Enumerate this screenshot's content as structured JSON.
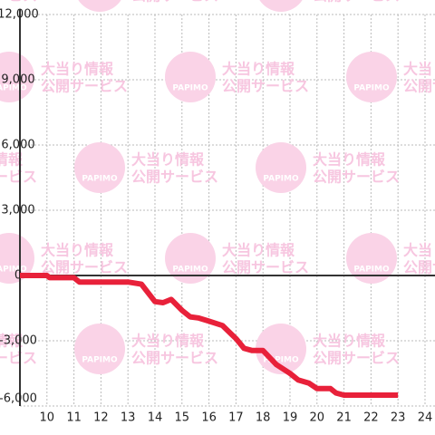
{
  "chart_data": {
    "type": "line",
    "x": [
      9,
      10,
      10.1,
      11,
      11.2,
      13,
      13.5,
      14,
      14.3,
      14.6,
      15,
      15.3,
      15.6,
      16,
      16.5,
      17,
      17.3,
      17.6,
      18,
      18.5,
      19,
      19.3,
      19.7,
      20,
      20.5,
      20.7,
      21,
      23
    ],
    "series": [
      {
        "color": "#e8213a",
        "values": [
          0,
          0,
          -100,
          -100,
          -300,
          -300,
          -400,
          -1200,
          -1250,
          -1100,
          -1600,
          -1900,
          -1950,
          -2100,
          -2300,
          -2900,
          -3350,
          -3450,
          -3450,
          -4100,
          -4500,
          -4800,
          -4950,
          -5200,
          -5200,
          -5400,
          -5500,
          -5500
        ]
      }
    ],
    "xlim": [
      9,
      24.37
    ],
    "xticks": [
      10,
      11,
      12,
      13,
      14,
      15,
      16,
      17,
      18,
      19,
      20,
      21,
      22,
      23,
      24
    ],
    "ylim": [
      -6000,
      12000
    ],
    "yticks": [
      {
        "value": -6000,
        "label": "-6,000"
      },
      {
        "value": -3000,
        "label": "-3,000"
      },
      0,
      {
        "value": 3000,
        "label": "3,000"
      },
      {
        "value": 6000,
        "label": "6,000"
      },
      {
        "value": 9000,
        "label": "9,000"
      },
      {
        "value": 12000,
        "label": "12,000"
      }
    ],
    "grid": true
  },
  "watermark": {
    "logo": "PAPIMO",
    "lines": [
      "大当り情報",
      "公開サービス"
    ]
  }
}
